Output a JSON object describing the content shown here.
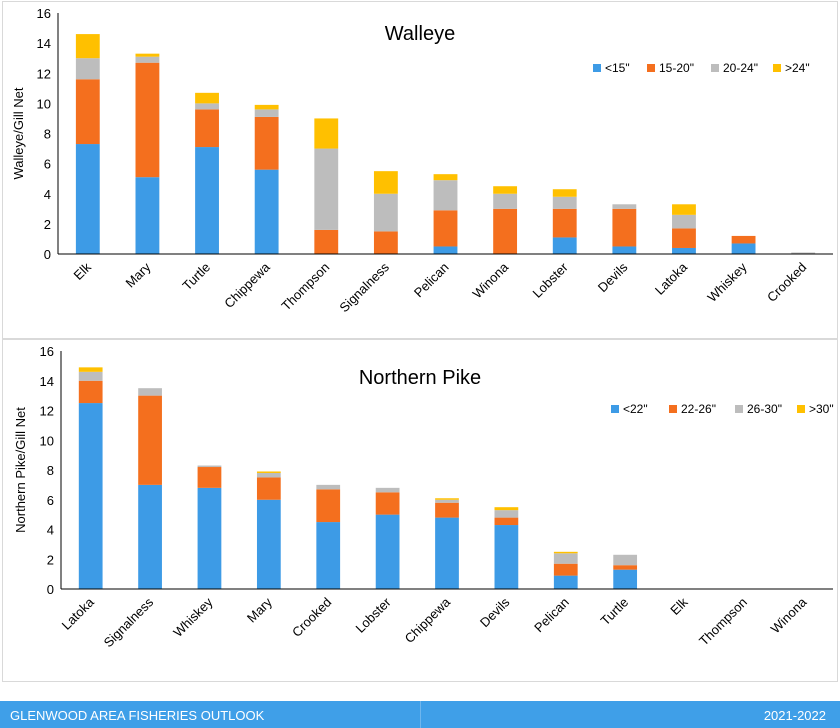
{
  "colors": {
    "c1": "#3d9be6",
    "c2": "#f46f1e",
    "c3": "#bdbdbd",
    "c4": "#ffc000",
    "footer_bg": "#3f9fe8"
  },
  "footer": {
    "left": "GLENWOOD AREA FISHERIES OUTLOOK",
    "right": "2021-2022"
  },
  "chart_data": [
    {
      "type": "bar",
      "stacked": true,
      "title": "Walleye",
      "xlabel": "",
      "ylabel": "Walleye/Gill Net",
      "ylim": [
        0,
        16
      ],
      "yticks": [
        0,
        2,
        4,
        6,
        8,
        10,
        12,
        14,
        16
      ],
      "legend_position": "top-right",
      "categories": [
        "Elk",
        "Mary",
        "Turtle",
        "Chippewa",
        "Thompson",
        "Signalness",
        "Pelican",
        "Winona",
        "Lobster",
        "Devils",
        "Latoka",
        "Whiskey",
        "Crooked"
      ],
      "series": [
        {
          "name": "<15\"",
          "values": [
            7.3,
            5.1,
            7.1,
            5.6,
            0.0,
            0.0,
            0.5,
            0.0,
            1.1,
            0.5,
            0.4,
            0.7,
            0.0
          ]
        },
        {
          "name": "15-20\"",
          "values": [
            4.3,
            7.6,
            2.5,
            3.5,
            1.6,
            1.5,
            2.4,
            3.0,
            1.9,
            2.5,
            1.3,
            0.5,
            0.0
          ]
        },
        {
          "name": "20-24\"",
          "values": [
            1.4,
            0.4,
            0.4,
            0.5,
            5.4,
            2.5,
            2.0,
            1.0,
            0.8,
            0.3,
            0.9,
            0.0,
            0.1
          ]
        },
        {
          "name": ">24\"",
          "values": [
            1.6,
            0.2,
            0.7,
            0.3,
            2.0,
            1.5,
            0.4,
            0.5,
            0.5,
            0.0,
            0.7,
            0.0,
            0.0
          ]
        }
      ]
    },
    {
      "type": "bar",
      "stacked": true,
      "title": "Northern Pike",
      "xlabel": "",
      "ylabel": "Northern Pike/Gill Net",
      "ylim": [
        0,
        16
      ],
      "yticks": [
        0,
        2,
        4,
        6,
        8,
        10,
        12,
        14,
        16
      ],
      "legend_position": "top-right",
      "categories": [
        "Latoka",
        "Signalness",
        "Whiskey",
        "Mary",
        "Crooked",
        "Lobster",
        "Chippewa",
        "Devils",
        "Pelican",
        "Turtle",
        "Elk",
        "Thompson",
        "Winona"
      ],
      "series": [
        {
          "name": "<22\"",
          "values": [
            12.5,
            7.0,
            6.8,
            6.0,
            4.5,
            5.0,
            4.8,
            4.3,
            0.9,
            1.3,
            0.0,
            0.0,
            0.0
          ]
        },
        {
          "name": "22-26\"",
          "values": [
            1.5,
            6.0,
            1.4,
            1.5,
            2.2,
            1.5,
            1.0,
            0.5,
            0.8,
            0.3,
            0.0,
            0.0,
            0.0
          ]
        },
        {
          "name": "26-30\"",
          "values": [
            0.6,
            0.5,
            0.1,
            0.3,
            0.3,
            0.3,
            0.2,
            0.5,
            0.7,
            0.7,
            0.0,
            0.0,
            0.0
          ]
        },
        {
          "name": ">30\"",
          "values": [
            0.3,
            0.0,
            0.0,
            0.1,
            0.0,
            0.0,
            0.1,
            0.2,
            0.1,
            0.0,
            0.0,
            0.0,
            0.0
          ]
        }
      ]
    }
  ]
}
